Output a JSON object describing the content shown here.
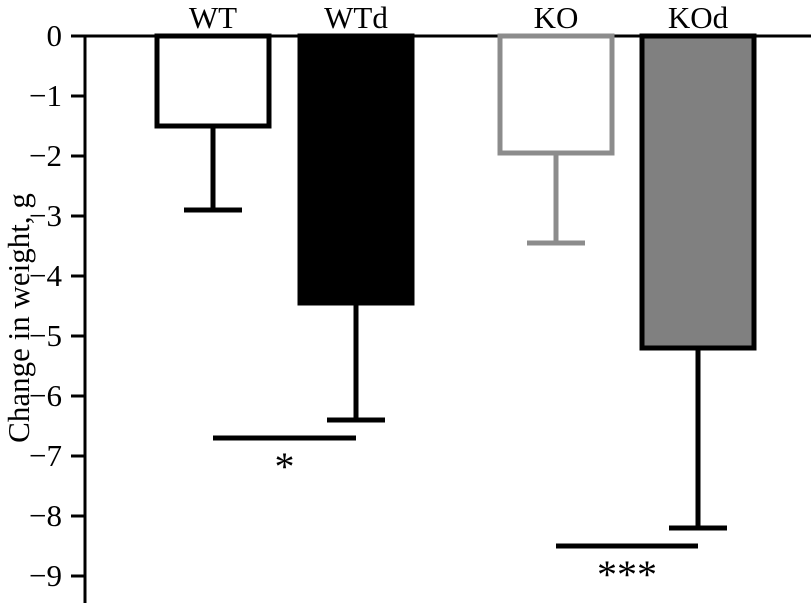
{
  "chart_data": {
    "type": "bar",
    "ylabel": "Change in weight, g",
    "ylim": [
      -9.4,
      0
    ],
    "yticks": [
      0,
      -1,
      -2,
      -3,
      -4,
      -5,
      -6,
      -7,
      -8,
      -9
    ],
    "ytick_labels": [
      "0",
      "−1",
      "−2",
      "−3",
      "−4",
      "−5",
      "−6",
      "−7",
      "−8",
      "−9"
    ],
    "categories": [
      "WT",
      "WTd",
      "KO",
      "KOd"
    ],
    "values": [
      -1.5,
      -4.45,
      -1.95,
      -5.2
    ],
    "errors": [
      1.4,
      1.95,
      1.5,
      3.0
    ],
    "bar_fill": [
      "#ffffff",
      "#000000",
      "#ffffff",
      "#808080"
    ],
    "bar_stroke": [
      "#000000",
      "#000000",
      "#8c8c8c",
      "#000000"
    ],
    "significance": [
      {
        "label": "*",
        "between": [
          "WT",
          "WTd"
        ],
        "y": -6.7
      },
      {
        "label": "***",
        "between": [
          "KO",
          "KOd"
        ],
        "y": -8.5
      }
    ],
    "grid": false
  }
}
